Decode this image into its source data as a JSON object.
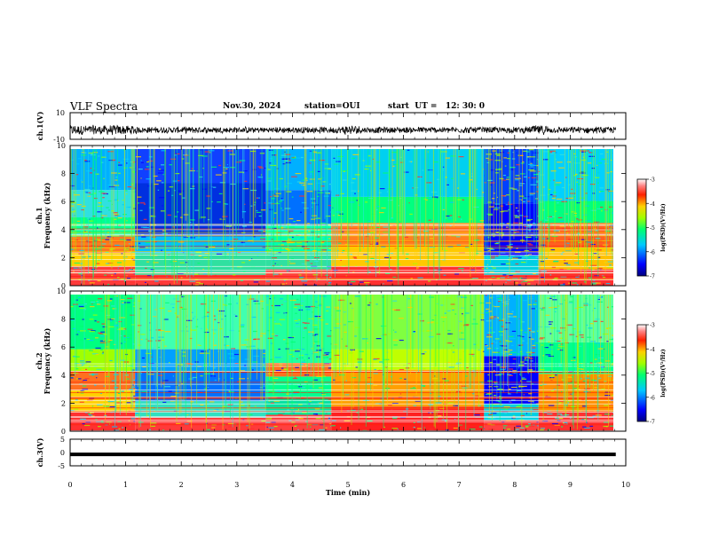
{
  "header": {
    "title": "VLF Spectra",
    "date": "Nov.30, 2024",
    "station": "station=OUI",
    "start": "start  UT =   12: 30: 0"
  },
  "chart_data": [
    {
      "type": "line",
      "name": "waveform-ch1",
      "ylabel": "ch.1(V)",
      "ylim": [
        -10,
        10
      ],
      "yticks": [
        "10",
        "-10"
      ],
      "xlim": [
        0,
        10
      ]
    },
    {
      "type": "heatmap",
      "name": "spectrogram-ch1",
      "ylabel_lines": [
        "ch.1",
        "Frequency  (kHz)"
      ],
      "ylim": [
        0,
        10
      ],
      "yticks": [
        "0",
        "2",
        "4",
        "6",
        "8",
        "10"
      ],
      "xlim": [
        0,
        10
      ],
      "data_end_min": 9.8,
      "segment_boundaries_min": [
        1.17,
        3.52,
        4.7,
        7.45,
        8.43
      ],
      "colorbar": {
        "label": "log(PSD)(V²/Hz)",
        "range": [
          -7,
          -3
        ],
        "ticks": [
          "-3",
          "-4",
          "-5",
          "-6",
          "-7"
        ]
      }
    },
    {
      "type": "heatmap",
      "name": "spectrogram-ch2",
      "ylabel_lines": [
        "ch.2",
        "Frequency  (kHz)"
      ],
      "ylim": [
        0,
        10
      ],
      "yticks": [
        "0",
        "2",
        "4",
        "6",
        "8",
        "10"
      ],
      "xlim": [
        0,
        10
      ],
      "data_end_min": 9.8,
      "segment_boundaries_min": [
        1.17,
        3.52,
        4.7,
        7.45,
        8.43
      ],
      "colorbar": {
        "label": "log(PSD)(V²/Hz)",
        "range": [
          -7,
          -3
        ],
        "ticks": [
          "-3",
          "-4",
          "-5",
          "-6",
          "-7"
        ]
      }
    },
    {
      "type": "line",
      "name": "waveform-ch3",
      "ylabel": "ch.3(V)",
      "ylim": [
        -5,
        5
      ],
      "yticks": [
        "5",
        "0",
        "-5"
      ],
      "constant_value": -0.7,
      "xlim": [
        0,
        10
      ]
    }
  ],
  "xaxis": {
    "label": "Time  (min)",
    "ticks": [
      "0",
      "1",
      "2",
      "3",
      "4",
      "5",
      "6",
      "7",
      "8",
      "9",
      "10"
    ]
  }
}
